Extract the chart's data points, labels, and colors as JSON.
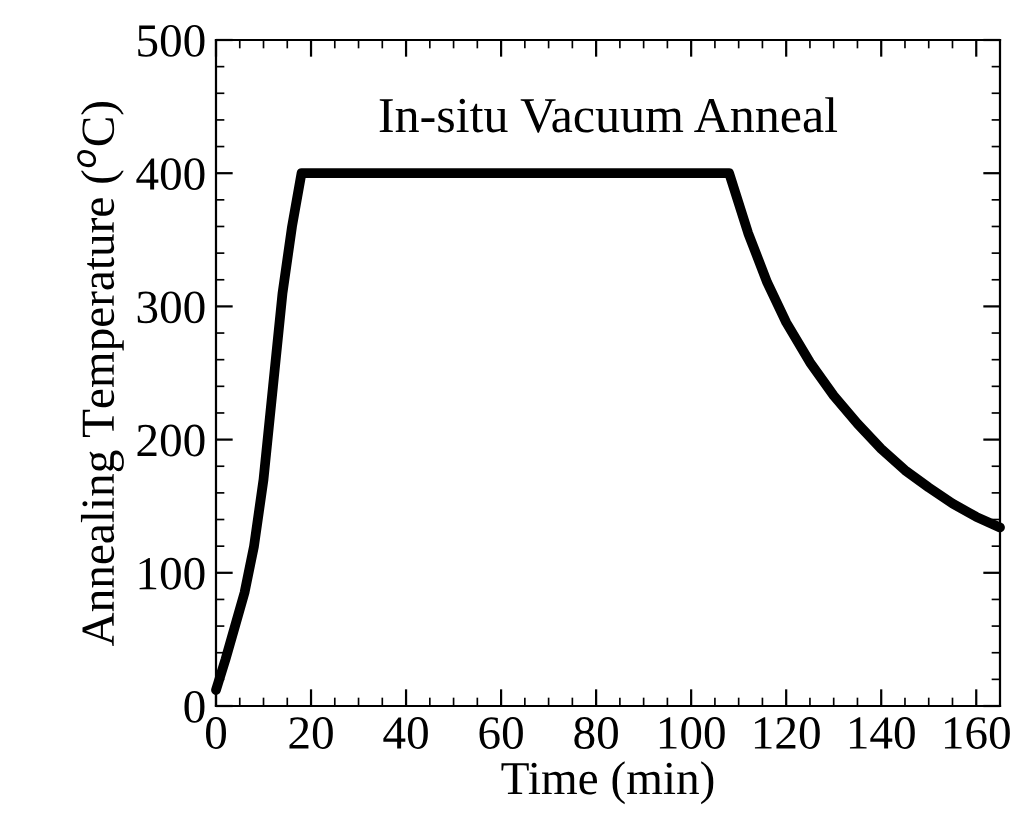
{
  "chart_data": {
    "type": "line",
    "title": "In-situ Vacuum Anneal",
    "xlabel": "Time (min)",
    "ylabel": "Annealing Temperature ($^{o}$C)",
    "xlim": [
      0,
      165
    ],
    "xticks": [
      0,
      20,
      40,
      60,
      80,
      100,
      120,
      140,
      160
    ],
    "ylim": [
      0,
      500
    ],
    "yticks": [
      0,
      100,
      200,
      300,
      400,
      500
    ],
    "series": [
      {
        "color": "#000000",
        "x": [
          0,
          2,
          4,
          6,
          8,
          10,
          12,
          14,
          16,
          18,
          108,
          112,
          116,
          120,
          125,
          130,
          135,
          140,
          145,
          150,
          155,
          160,
          165
        ],
        "values": [
          12,
          35,
          60,
          85,
          120,
          170,
          240,
          310,
          360,
          400,
          400,
          355,
          318,
          288,
          258,
          233,
          212,
          193,
          177,
          164,
          152,
          142,
          134
        ]
      }
    ]
  }
}
